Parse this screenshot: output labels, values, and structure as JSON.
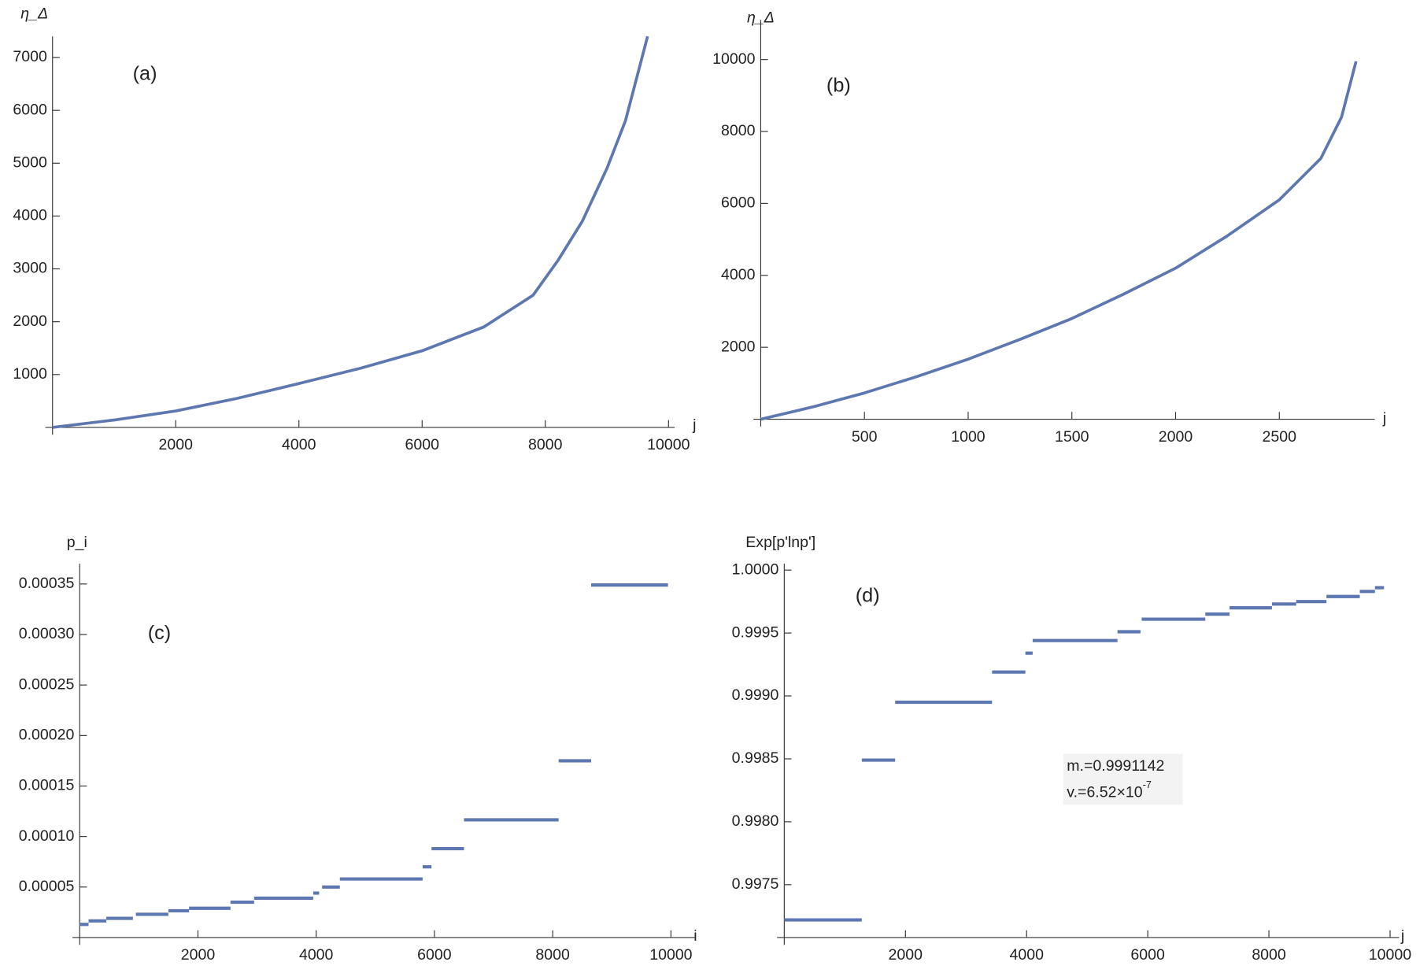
{
  "chart_data": [
    {
      "type": "line",
      "panel_label": "(a)",
      "y_label": "η_Δ",
      "x_label": "j",
      "color": "#5d77b0",
      "x": [
        0,
        1000,
        2000,
        3000,
        4000,
        5000,
        6000,
        7000,
        7800,
        8200,
        8600,
        9000,
        9300,
        9660
      ],
      "values": [
        0,
        140,
        310,
        550,
        830,
        1120,
        1450,
        1900,
        2500,
        3150,
        3900,
        4900,
        5800,
        7400
      ],
      "xlim": [
        0,
        10100
      ],
      "ylim": [
        0,
        7400
      ],
      "xticks": [
        2000,
        4000,
        6000,
        8000,
        10000
      ],
      "yticks": [
        1000,
        2000,
        3000,
        4000,
        5000,
        6000,
        7000
      ]
    },
    {
      "type": "line",
      "panel_label": "(b)",
      "y_label": "η_Δ",
      "x_label": "j",
      "color": "#5d77b0",
      "x": [
        0,
        250,
        500,
        750,
        1000,
        1250,
        1500,
        1750,
        2000,
        2250,
        2500,
        2700,
        2800,
        2870
      ],
      "values": [
        0,
        340,
        730,
        1180,
        1670,
        2220,
        2800,
        3480,
        4200,
        5100,
        6100,
        7250,
        8400,
        9950
      ],
      "xlim": [
        0,
        2960
      ],
      "ylim": [
        0,
        11100
      ],
      "xticks": [
        500,
        1000,
        1500,
        2000,
        2500
      ],
      "yticks": [
        2000,
        4000,
        6000,
        8000,
        10000
      ]
    },
    {
      "type": "step",
      "panel_label": "(c)",
      "y_label": "p_i",
      "x_label": "i",
      "color": "#5d77b0",
      "x": [
        0,
        150,
        450,
        950,
        1500,
        1850,
        2550,
        2950,
        3950,
        4100,
        4400,
        5800,
        5950,
        6500,
        8100,
        8650
      ],
      "x_end": [
        150,
        450,
        900,
        1500,
        1850,
        2550,
        2950,
        3950,
        4050,
        4400,
        5800,
        5950,
        6500,
        8100,
        8650,
        9950
      ],
      "values": [
        1.3e-05,
        1.65e-05,
        1.9e-05,
        2.3e-05,
        2.65e-05,
        2.9e-05,
        3.5e-05,
        3.9e-05,
        4.4e-05,
        5e-05,
        5.8e-05,
        7e-05,
        8.8e-05,
        0.0001165,
        0.000175,
        0.000349
      ],
      "xlim": [
        0,
        10400
      ],
      "ylim": [
        0,
        0.00037
      ],
      "xticks": [
        2000,
        4000,
        6000,
        8000,
        10000
      ],
      "yticks": [
        {
          "value": 5e-05,
          "label": "0.00005"
        },
        {
          "value": 0.0001,
          "label": "0.00010"
        },
        {
          "value": 0.00015,
          "label": "0.00015"
        },
        {
          "value": 0.0002,
          "label": "0.00020"
        },
        {
          "value": 0.00025,
          "label": "0.00025"
        },
        {
          "value": 0.0003,
          "label": "0.00030"
        },
        {
          "value": 0.00035,
          "label": "0.00035"
        }
      ]
    },
    {
      "type": "step",
      "panel_label": "(d)",
      "y_label": "Exp[p'lnp']",
      "x_label": "j",
      "color": "#5d77b0",
      "x": [
        0,
        1280,
        1830,
        3430,
        3980,
        4100,
        5500,
        5900,
        6950,
        7350,
        8050,
        8450,
        8950,
        9500,
        9750
      ],
      "x_end": [
        1280,
        1830,
        3430,
        3980,
        4100,
        5500,
        5880,
        6950,
        7350,
        8050,
        8450,
        8950,
        9500,
        9750,
        9900
      ],
      "values": [
        0.99722,
        0.99849,
        0.99895,
        0.99919,
        0.99934,
        0.99944,
        0.99951,
        0.99961,
        0.99965,
        0.9997,
        0.99973,
        0.99975,
        0.99979,
        0.99983,
        0.99986
      ],
      "xlim": [
        0,
        10150
      ],
      "ylim": [
        0.99708,
        1.00005
      ],
      "xticks": [
        2000,
        4000,
        6000,
        8000,
        10000
      ],
      "yticks": [
        0.9975,
        {
          "value": 0.998,
          "label": "0.9980"
        },
        0.9985,
        {
          "value": 0.999,
          "label": "0.9990"
        },
        0.9995,
        {
          "value": 1,
          "label": "1.0000"
        }
      ],
      "annotations": [
        {
          "text": "m.=0.9991142"
        },
        {
          "text": "v.=6.52×10",
          "superscript": "-7"
        }
      ]
    }
  ]
}
